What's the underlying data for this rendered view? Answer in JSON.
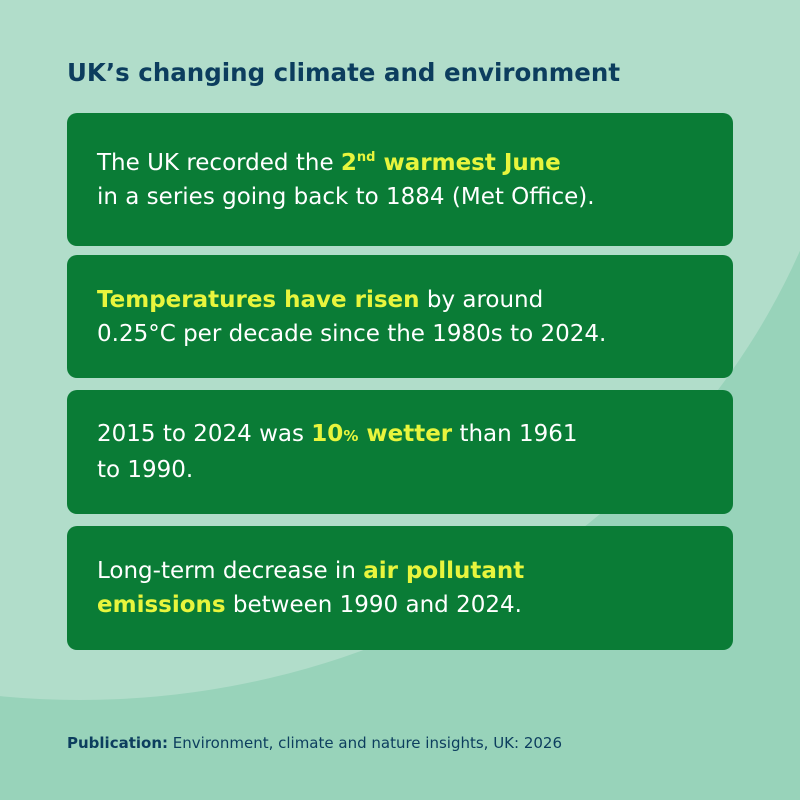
{
  "title": "UK’s changing climate and environment",
  "cards": [
    {
      "parts": [
        "The UK recorded the",
        "2",
        "nd",
        "warmest June",
        "in a series going back to 1884 (Met Office)."
      ]
    },
    {
      "parts": [
        "Temperatures have risen",
        "by around",
        "0.25°C per decade since the 1980s to 2024."
      ]
    },
    {
      "parts": [
        "2015 to 2024 was",
        "10",
        "%",
        "wetter",
        "than 1961",
        "to 1990."
      ]
    },
    {
      "parts": [
        "Long-term decrease in",
        "air pollutant",
        "emissions",
        "between 1990 and 2024."
      ]
    }
  ],
  "footer": {
    "label": "Publication:",
    "text": "Environment, climate and nature insights, UK: 2026"
  }
}
